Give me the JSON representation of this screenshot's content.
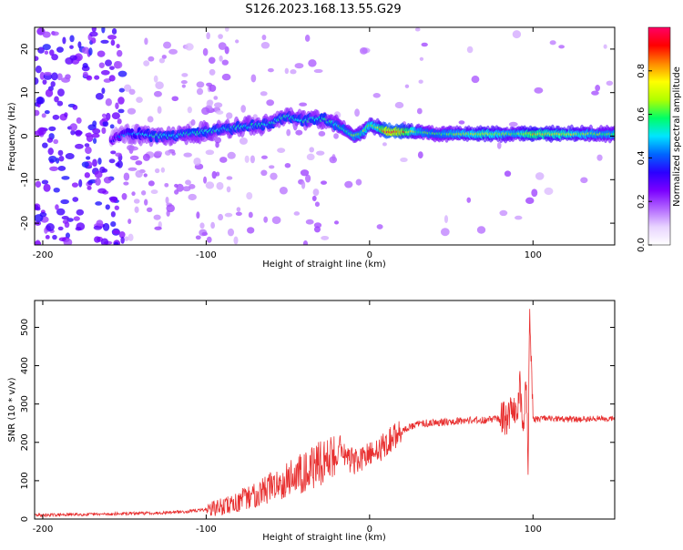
{
  "title": "S126.2023.168.13.55.G29",
  "chart_data": [
    {
      "type": "heatmap",
      "xlabel": "Height of straight line (km)",
      "ylabel": "Frequency (Hz)",
      "xlim": [
        -205,
        150
      ],
      "ylim": [
        -25,
        25
      ],
      "xticks": [
        -200,
        -100,
        0,
        100
      ],
      "yticks": [
        -20,
        -10,
        0,
        10,
        20
      ],
      "colorbar": {
        "label": "Normalized spectral amplitude",
        "range": [
          0.0,
          1.0
        ],
        "ticks": [
          0.0,
          0.2,
          0.4,
          0.6,
          0.8
        ],
        "tick_labels": [
          "0.0",
          "0.2",
          "0.4",
          "0.6",
          "0.8"
        ],
        "colormap": [
          "#ffffff",
          "#e8d4ff",
          "#b266ff",
          "#7b00ff",
          "#2b00ff",
          "#0066ff",
          "#00e5ff",
          "#00ff66",
          "#b0ff00",
          "#ffff00",
          "#ff8800",
          "#ff0000",
          "#ff0066"
        ]
      },
      "ridge": {
        "x": [
          -158,
          -150,
          -140,
          -130,
          -120,
          -110,
          -100,
          -90,
          -80,
          -70,
          -60,
          -55,
          -50,
          -45,
          -40,
          -35,
          -30,
          -25,
          -22,
          -20,
          -15,
          -10,
          -5,
          0,
          5,
          10,
          15,
          20,
          30,
          40,
          50,
          60,
          70,
          80,
          90,
          95,
          100,
          110,
          120,
          130,
          140,
          150
        ],
        "y": [
          -1,
          0.5,
          0.5,
          0,
          0,
          0.5,
          1,
          1.5,
          2,
          2.5,
          3,
          4,
          4.5,
          4,
          3.5,
          4,
          4,
          3.5,
          3,
          2.5,
          1.5,
          0,
          0.5,
          2.5,
          2,
          1,
          1,
          1,
          1,
          0.5,
          0.5,
          0.5,
          0.5,
          0.5,
          0.5,
          0.5,
          0.5,
          0.5,
          0.5,
          0.5,
          0.5,
          0.5
        ],
        "amplitude": [
          0.3,
          0.4,
          0.45,
          0.5,
          0.5,
          0.5,
          0.5,
          0.5,
          0.5,
          0.5,
          0.5,
          0.5,
          0.5,
          0.5,
          0.5,
          0.5,
          0.5,
          0.5,
          0.55,
          0.55,
          0.55,
          0.6,
          0.6,
          0.65,
          0.65,
          0.9,
          0.9,
          0.85,
          0.6,
          0.55,
          0.6,
          0.65,
          0.7,
          0.65,
          0.6,
          0.7,
          0.75,
          0.7,
          0.7,
          0.65,
          0.6,
          0.6
        ]
      }
    },
    {
      "type": "line",
      "xlabel": "Height of straight line (km)",
      "ylabel": "SNR (10 * v/v)",
      "xlim": [
        -205,
        150
      ],
      "ylim": [
        0,
        570
      ],
      "xticks": [
        -200,
        -100,
        0,
        100
      ],
      "yticks": [
        0,
        100,
        200,
        300,
        400,
        500
      ],
      "line_color": "#e83030",
      "series": [
        {
          "x": [
            -205,
            -190,
            -180,
            -170,
            -160,
            -150,
            -140,
            -130,
            -120,
            -110,
            -100,
            -90,
            -80,
            -75,
            -70,
            -65,
            -60,
            -55,
            -50,
            -45,
            -40,
            -35,
            -30,
            -25,
            -20,
            -18,
            -15,
            -10,
            -5,
            0,
            5,
            10,
            15,
            20,
            25,
            30,
            40,
            50,
            60,
            70,
            80,
            85,
            88,
            90,
            92,
            94,
            96,
            97,
            98,
            100,
            105,
            110,
            120,
            130,
            140,
            150
          ],
          "values": [
            10,
            11,
            12,
            12,
            13,
            14,
            15,
            16,
            18,
            20,
            25,
            32,
            45,
            55,
            65,
            75,
            85,
            95,
            105,
            115,
            125,
            135,
            145,
            160,
            170,
            200,
            165,
            150,
            155,
            165,
            180,
            195,
            215,
            230,
            240,
            248,
            252,
            255,
            258,
            258,
            262,
            262,
            300,
            260,
            350,
            220,
            380,
            140,
            570,
            260,
            262,
            262,
            260,
            260,
            262,
            262
          ]
        }
      ]
    }
  ]
}
